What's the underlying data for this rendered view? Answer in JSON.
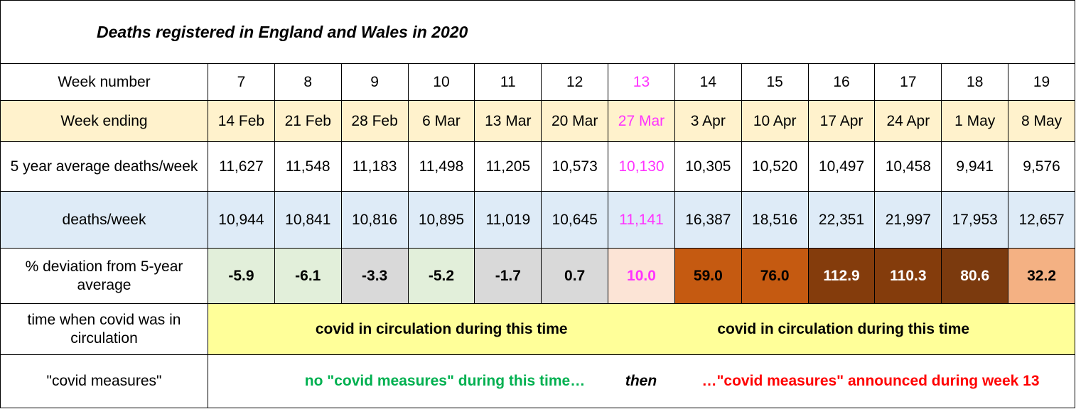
{
  "header": {
    "title": "Deaths registered in England and Wales in 2020"
  },
  "table": {
    "highlight": {
      "column": 6,
      "color": "#ff33ff"
    },
    "rows": [
      {
        "label": "Week number",
        "background": "#ffffff",
        "cells": [
          "7",
          "8",
          "9",
          "10",
          "11",
          "12",
          "13",
          "14",
          "15",
          "16",
          "17",
          "18",
          "19"
        ]
      },
      {
        "label": "Week ending",
        "background": "#fff2cc",
        "cells": [
          "14 Feb",
          "21 Feb",
          "28 Feb",
          "6 Mar",
          "13 Mar",
          "20 Mar",
          "27 Mar",
          "3 Apr",
          "10 Apr",
          "17 Apr",
          "24 Apr",
          "1 May",
          "8 May"
        ]
      },
      {
        "label": "5 year average deaths/week",
        "background": "#ffffff",
        "cells": [
          "11,627",
          "11,548",
          "11,183",
          "11,498",
          "11,205",
          "10,573",
          "10,130",
          "10,305",
          "10,520",
          "10,497",
          "10,458",
          "9,941",
          "9,576"
        ]
      },
      {
        "label": "deaths/week",
        "background": "#deebf7",
        "cells": [
          "10,944",
          "10,841",
          "10,816",
          "10,895",
          "11,019",
          "10,645",
          "11,141",
          "16,387",
          "18,516",
          "22,351",
          "21,997",
          "17,953",
          "12,657"
        ]
      },
      {
        "label": "% deviation from 5-year average",
        "background": "#ffffff",
        "bold": true,
        "cells": [
          "-5.9",
          "-6.1",
          "-3.3",
          "-5.2",
          "-1.7",
          "0.7",
          "10.0",
          "59.0",
          "76.0",
          "112.9",
          "110.3",
          "80.6",
          "32.2"
        ],
        "cell_colors": [
          "#e2efda",
          "#e2efda",
          "#d9d9d9",
          "#e2efda",
          "#d9d9d9",
          "#d9d9d9",
          "#fce4d6",
          "#c55a11",
          "#c55a11",
          "#843c0c",
          "#843c0c",
          "#7b3a0e",
          "#f4b183"
        ]
      }
    ]
  },
  "circulation": {
    "label": "time when covid was in circulation",
    "color": "#ffff99",
    "texts": [
      "covid in circulation during this time",
      "covid in circulation during this time"
    ]
  },
  "measures": {
    "label": "\"covid measures\"",
    "before": "no \"covid measures\" during this time…",
    "before_color": "#00b050",
    "then": "then",
    "after": "…\"covid measures\" announced during week 13",
    "after_color": "#ff0000"
  }
}
